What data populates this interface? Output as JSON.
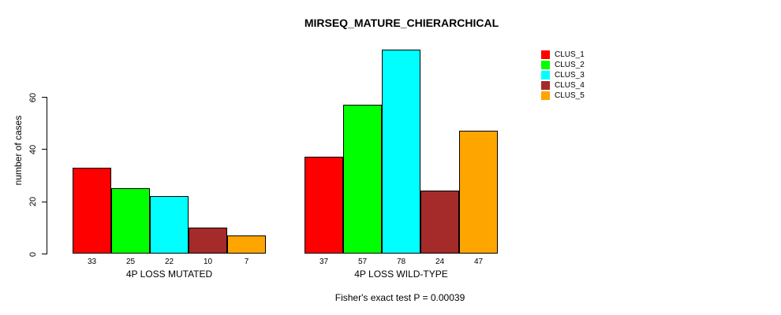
{
  "chart_data": {
    "type": "bar",
    "title": "MIRSEQ_MATURE_CHIERARCHICAL",
    "ylabel": "number of cases",
    "xlabel": "",
    "ylim": [
      0,
      60
    ],
    "yticks": [
      0,
      20,
      40,
      60
    ],
    "grid": false,
    "legend_position": "right",
    "bar_value_labels": true,
    "categories": [
      "4P LOSS MUTATED",
      "4P LOSS WILD-TYPE"
    ],
    "series": [
      {
        "name": "CLUS_1",
        "color": "#ff0000",
        "values": [
          33,
          37
        ]
      },
      {
        "name": "CLUS_2",
        "color": "#00ff00",
        "values": [
          25,
          57
        ]
      },
      {
        "name": "CLUS_3",
        "color": "#00ffff",
        "values": [
          22,
          78
        ]
      },
      {
        "name": "CLUS_4",
        "color": "#a52a2a",
        "values": [
          10,
          24
        ]
      },
      {
        "name": "CLUS_5",
        "color": "#ffa500",
        "values": [
          7,
          47
        ]
      }
    ],
    "caption": "Fisher's exact test P = 0.00039"
  }
}
